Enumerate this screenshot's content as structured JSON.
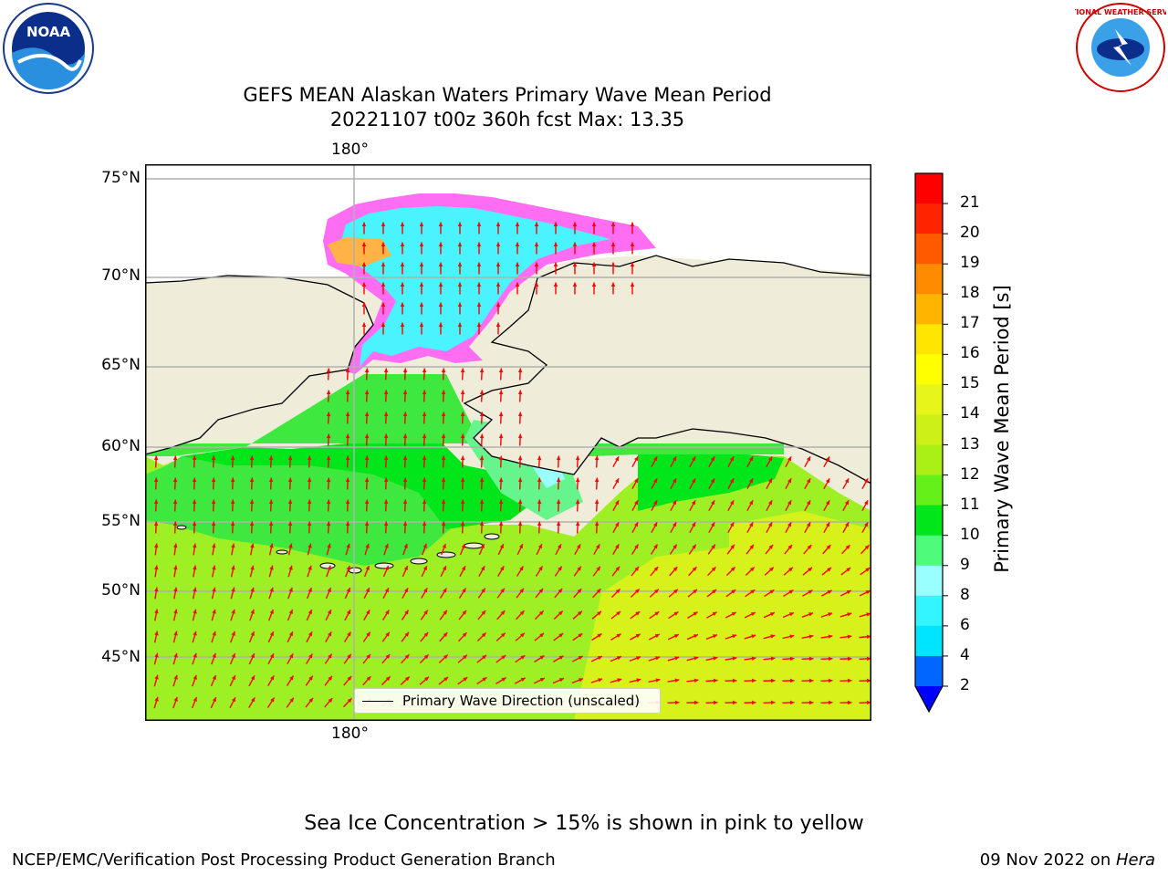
{
  "title": {
    "line1": "GEFS MEAN Alaskan Waters Primary Wave Mean Period",
    "line2": "20221107 t00z 360h fcst   Max: 13.35"
  },
  "logos": {
    "left": "NOAA",
    "right": "NATIONAL WEATHER SERVICE"
  },
  "map": {
    "lon_label_top": "180°",
    "lon_label_bottom": "180°",
    "lat_labels": [
      "75°N",
      "70°N",
      "65°N",
      "60°N",
      "55°N",
      "50°N",
      "45°N"
    ],
    "legend_label": "Primary Wave Direction (unscaled)",
    "colors": {
      "land": "#efedd9",
      "ocean_green": "#3fe83f",
      "ocean_lime": "#9ef024",
      "ocean_yellow": "#d6f21a",
      "ice_cyan": "#49f4fe",
      "ice_pink": "#ff6ef2",
      "arrows": "#ff0000"
    }
  },
  "colorbar": {
    "label": "Primary Wave Mean Period [s]",
    "ticks": [
      "2",
      "4",
      "6",
      "8",
      "9",
      "10",
      "11",
      "12",
      "13",
      "14",
      "15",
      "16",
      "17",
      "18",
      "19",
      "20",
      "21"
    ],
    "colors": [
      "#0066ff",
      "#00e5ff",
      "#33f5ff",
      "#99ffff",
      "#4dfc7a",
      "#00e61a",
      "#66f01a",
      "#aaf017",
      "#ccf018",
      "#e6f51a",
      "#ffff00",
      "#ffe600",
      "#ffb400",
      "#ff8c00",
      "#ff5a00",
      "#ff2400"
    ],
    "top_color": "#ff0000",
    "extend_color": "#0000ff"
  },
  "note": "Sea Ice Concentration > 15% is shown in pink to yellow",
  "footer": {
    "left": "NCEP/EMC/Verification Post Processing Product Generation Branch",
    "date": "09 Nov 2022 on ",
    "machine": "Hera"
  }
}
